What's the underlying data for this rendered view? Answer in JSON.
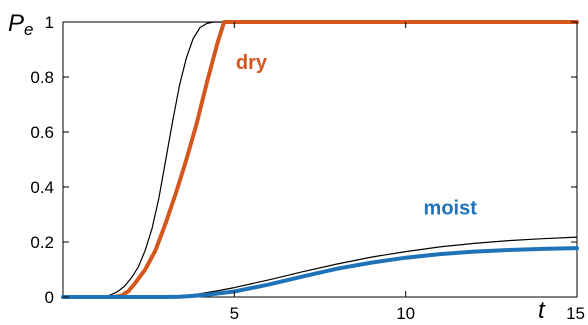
{
  "chart_data": {
    "type": "line",
    "title": "",
    "xlabel": "t",
    "ylabel": {
      "main": "P",
      "sub": "e"
    },
    "xlim": [
      0,
      15
    ],
    "ylim": [
      0,
      1
    ],
    "xticks": [
      {
        "value": 5,
        "label": "5"
      },
      {
        "value": 10,
        "label": "10"
      },
      {
        "value": 15,
        "label": "15"
      }
    ],
    "yticks": [
      {
        "value": 0,
        "label": "0"
      },
      {
        "value": 0.2,
        "label": "0.2"
      },
      {
        "value": 0.4,
        "label": "0.4"
      },
      {
        "value": 0.6,
        "label": "0.6"
      },
      {
        "value": 0.8,
        "label": "0.8"
      },
      {
        "value": 1,
        "label": "1"
      }
    ],
    "grid": false,
    "annotations": [
      {
        "text": "dry",
        "color": "#d4581e",
        "x": 5.5,
        "y": 0.83
      },
      {
        "text": "moist",
        "color": "#1f73b8",
        "x": 11.3,
        "y": 0.3
      }
    ],
    "series": [
      {
        "color": "#000000",
        "stroke": "thin",
        "points": [
          [
            0,
            0
          ],
          [
            0.5,
            0
          ],
          [
            1,
            0
          ],
          [
            1.2,
            0.002
          ],
          [
            1.4,
            0.008
          ],
          [
            1.6,
            0.02
          ],
          [
            1.8,
            0.04
          ],
          [
            2,
            0.07
          ],
          [
            2.2,
            0.11
          ],
          [
            2.4,
            0.17
          ],
          [
            2.6,
            0.25
          ],
          [
            2.8,
            0.36
          ],
          [
            3,
            0.5
          ],
          [
            3.2,
            0.64
          ],
          [
            3.4,
            0.77
          ],
          [
            3.6,
            0.87
          ],
          [
            3.8,
            0.94
          ],
          [
            4,
            0.98
          ],
          [
            4.2,
            0.995
          ],
          [
            4.4,
            1
          ],
          [
            5,
            1
          ],
          [
            10,
            1
          ],
          [
            15,
            1
          ]
        ]
      },
      {
        "color": "#d4581e",
        "stroke": "thick",
        "points": [
          [
            0,
            0
          ],
          [
            1,
            0
          ],
          [
            1.5,
            0
          ],
          [
            1.7,
            0.005
          ],
          [
            1.9,
            0.02
          ],
          [
            2.1,
            0.05
          ],
          [
            2.4,
            0.1
          ],
          [
            2.7,
            0.17
          ],
          [
            3,
            0.27
          ],
          [
            3.3,
            0.38
          ],
          [
            3.6,
            0.5
          ],
          [
            3.9,
            0.63
          ],
          [
            4.2,
            0.78
          ],
          [
            4.5,
            0.92
          ],
          [
            4.7,
            1
          ],
          [
            5,
            1
          ],
          [
            10,
            1
          ],
          [
            15,
            1
          ]
        ]
      },
      {
        "color": "#000000",
        "stroke": "thin",
        "points": [
          [
            0,
            0
          ],
          [
            3,
            0
          ],
          [
            3.3,
            0.002
          ],
          [
            3.6,
            0.006
          ],
          [
            4,
            0.012
          ],
          [
            4.5,
            0.022
          ],
          [
            5,
            0.034
          ],
          [
            6,
            0.062
          ],
          [
            7,
            0.092
          ],
          [
            8,
            0.12
          ],
          [
            9,
            0.145
          ],
          [
            10,
            0.165
          ],
          [
            11,
            0.182
          ],
          [
            12,
            0.195
          ],
          [
            13,
            0.205
          ],
          [
            14,
            0.212
          ],
          [
            15,
            0.218
          ]
        ]
      },
      {
        "color": "#1f73b8",
        "stroke": "thick",
        "points": [
          [
            0,
            0
          ],
          [
            3,
            0
          ],
          [
            3.4,
            0.001
          ],
          [
            3.8,
            0.004
          ],
          [
            4.2,
            0.008
          ],
          [
            5,
            0.02
          ],
          [
            6,
            0.045
          ],
          [
            7,
            0.075
          ],
          [
            8,
            0.103
          ],
          [
            9,
            0.125
          ],
          [
            10,
            0.143
          ],
          [
            11,
            0.156
          ],
          [
            12,
            0.165
          ],
          [
            13,
            0.171
          ],
          [
            14,
            0.175
          ],
          [
            15,
            0.178
          ]
        ]
      }
    ]
  }
}
